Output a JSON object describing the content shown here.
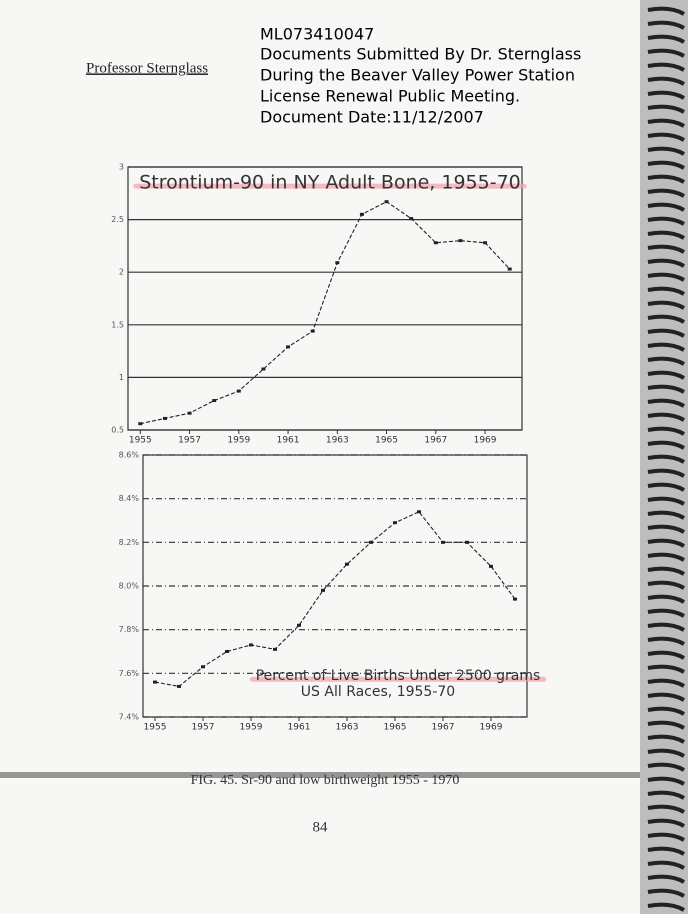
{
  "header": {
    "author": "Professor Sternglass",
    "lines": [
      "ML073410047",
      "Documents Submitted By Dr. Sternglass",
      "During the Beaver Valley Power Station",
      "License Renewal Public Meeting.",
      "Document Date:11/12/2007"
    ]
  },
  "chart_data": [
    {
      "type": "line",
      "title": "Strontium-90 in NY Adult Bone, 1955-70",
      "x": [
        1955,
        1956,
        1957,
        1958,
        1959,
        1960,
        1961,
        1962,
        1963,
        1964,
        1965,
        1966,
        1967,
        1968,
        1969,
        1970
      ],
      "values": [
        0.56,
        0.61,
        0.66,
        0.78,
        0.87,
        1.08,
        1.29,
        1.44,
        2.09,
        2.55,
        2.67,
        2.51,
        2.28,
        2.3,
        2.28,
        2.03
      ],
      "color": "#222222",
      "xlim": [
        1954.5,
        1970.5
      ],
      "xticks": [
        1955,
        1957,
        1959,
        1961,
        1963,
        1965,
        1967,
        1969
      ],
      "ylim": [
        0.5,
        3
      ],
      "yticks": [
        0.5,
        1,
        1.5,
        2,
        2.5,
        3
      ],
      "grid": true
    },
    {
      "type": "line",
      "title": "Percent of Live Births Under 2500 grams",
      "subtitle": "US All Races, 1955-70",
      "x": [
        1955,
        1956,
        1957,
        1958,
        1959,
        1960,
        1961,
        1962,
        1963,
        1964,
        1965,
        1966,
        1967,
        1968,
        1969,
        1970
      ],
      "values": [
        7.56,
        7.54,
        7.63,
        7.7,
        7.73,
        7.71,
        7.82,
        7.98,
        8.1,
        8.2,
        8.29,
        8.34,
        8.2,
        8.2,
        8.09,
        7.94
      ],
      "color": "#222222",
      "xlim": [
        1954.5,
        1970.5
      ],
      "xticks": [
        1955,
        1957,
        1959,
        1961,
        1963,
        1965,
        1967,
        1969
      ],
      "ylim": [
        7.4,
        8.6
      ],
      "yticks": [
        {
          "value": 7.4,
          "label": "7.4%"
        },
        {
          "value": 7.6,
          "label": "7.6%"
        },
        {
          "value": 7.8,
          "label": "7.8%"
        },
        {
          "value": 8.0,
          "label": "8.0%"
        },
        {
          "value": 8.2,
          "label": "8.2%"
        },
        {
          "value": 8.4,
          "label": "8.4%"
        },
        {
          "value": 8.6,
          "label": "8.6%"
        }
      ],
      "grid": true
    }
  ],
  "caption": "FIG. 45. Sr-90 and low birthweight 1955 - 1970",
  "page_number": "84"
}
